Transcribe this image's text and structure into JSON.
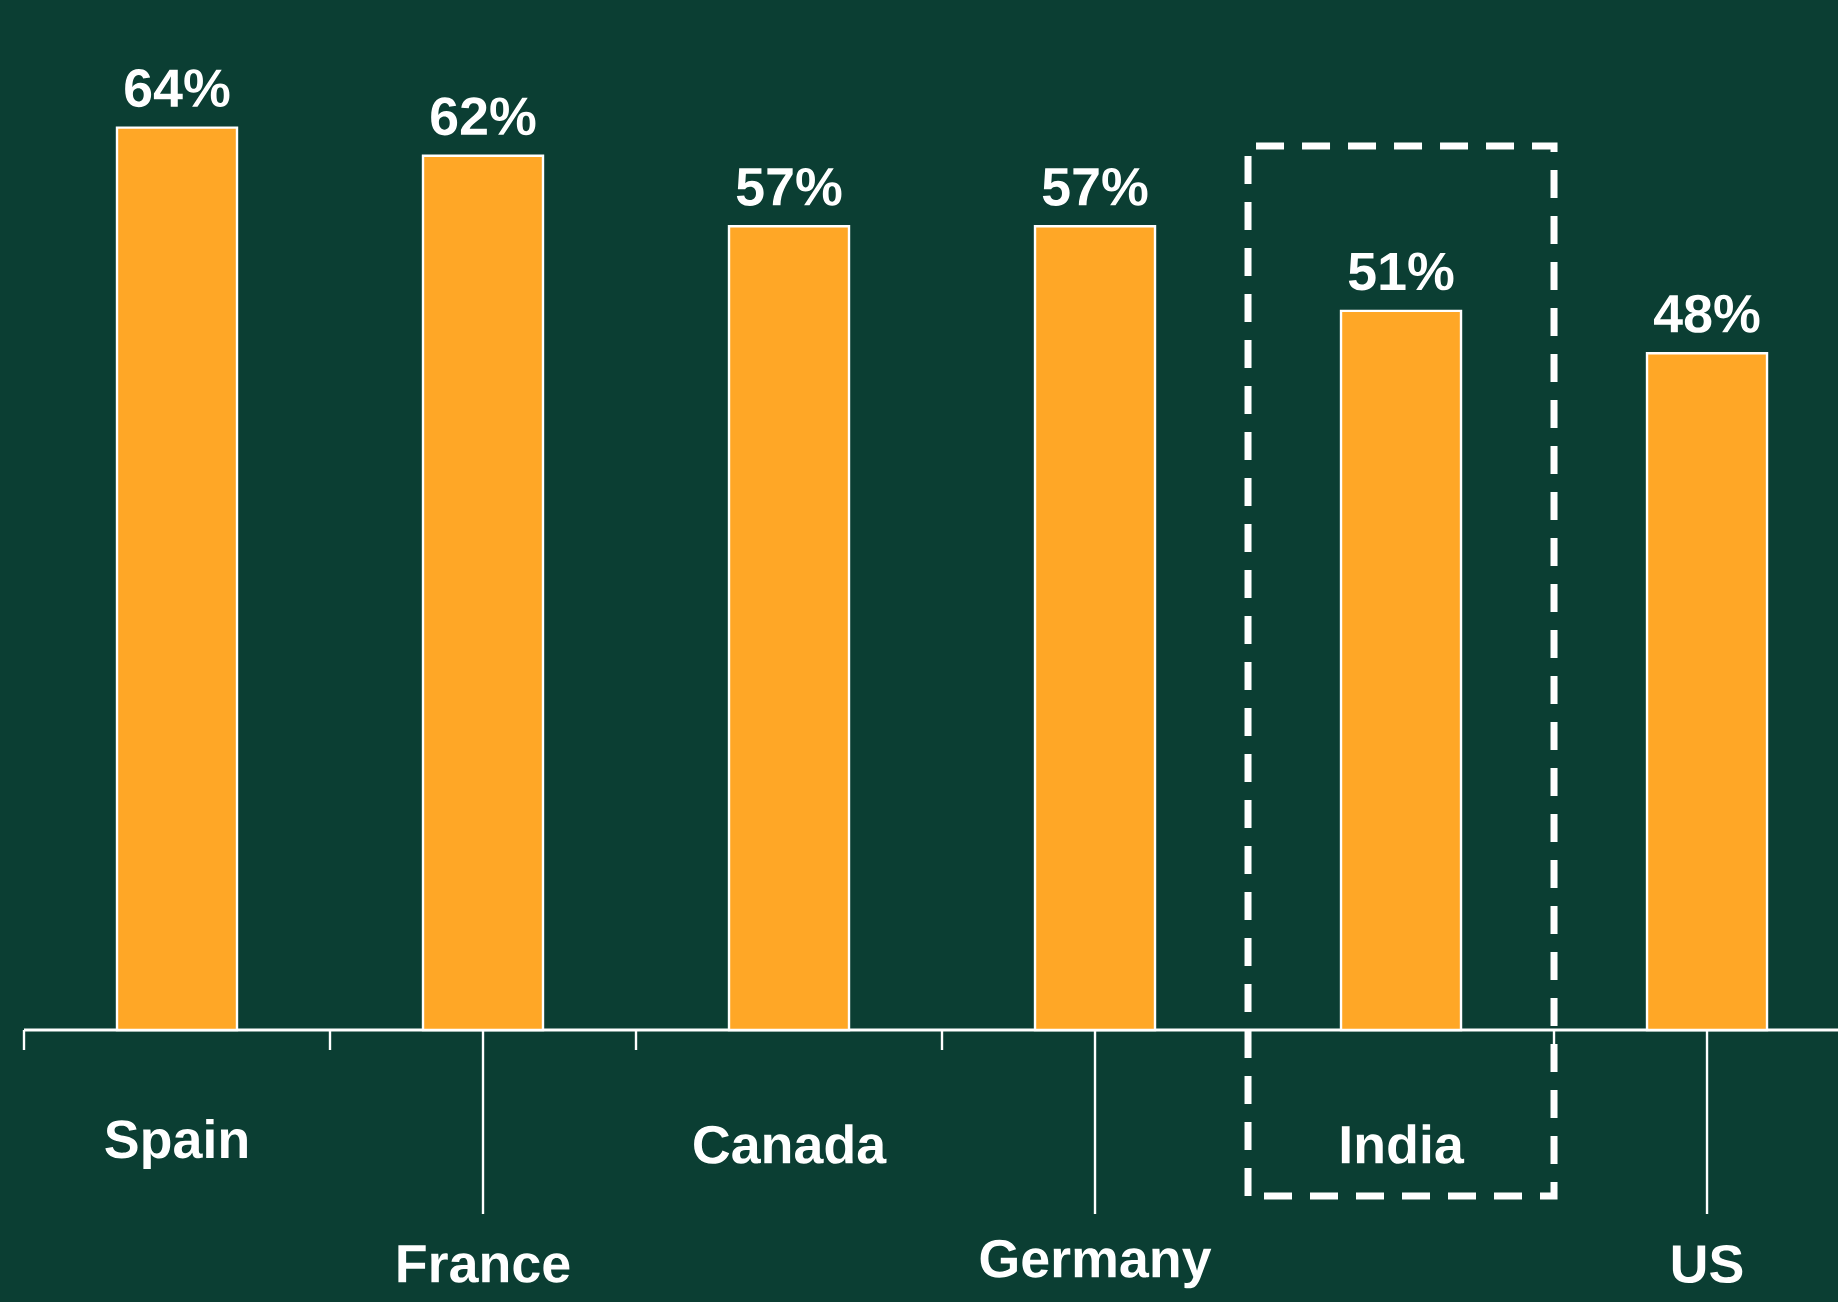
{
  "chart_data": {
    "type": "bar",
    "categories": [
      "Spain",
      "France",
      "Canada",
      "Germany",
      "India",
      "US"
    ],
    "values": [
      64,
      62,
      57,
      57,
      51,
      48
    ],
    "value_labels": [
      "64%",
      "62%",
      "57%",
      "57%",
      "51%",
      "48%"
    ],
    "color": "#ffa726"
  }
}
